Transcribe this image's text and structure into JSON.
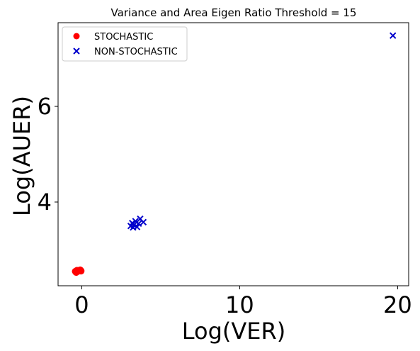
{
  "chart_data": {
    "type": "scatter",
    "title": "Variance and  Area Eigen Ratio Threshold = 15",
    "xlabel": "Log(VER)",
    "ylabel": "Log(AUER)",
    "xlim": [
      -1.5,
      20.7
    ],
    "ylim": [
      2.25,
      7.75
    ],
    "xticks": [
      0,
      10,
      20
    ],
    "yticks": [
      4,
      6
    ],
    "xtick_labels": [
      "0",
      "10",
      "20"
    ],
    "ytick_labels": [
      "4",
      "6"
    ],
    "grid": false,
    "legend_position": "top-left",
    "series": [
      {
        "name": "STOCHASTIC",
        "marker": "circle",
        "color": "#ff0000",
        "points": [
          {
            "x": -0.4,
            "y": 2.55
          },
          {
            "x": -0.3,
            "y": 2.57
          },
          {
            "x": -0.2,
            "y": 2.56
          },
          {
            "x": -0.1,
            "y": 2.58
          },
          {
            "x": -0.35,
            "y": 2.53
          },
          {
            "x": -0.05,
            "y": 2.56
          }
        ]
      },
      {
        "name": "NON-STOCHASTIC",
        "marker": "x",
        "color": "#0000cc",
        "points": [
          {
            "x": 3.1,
            "y": 3.5
          },
          {
            "x": 3.2,
            "y": 3.56
          },
          {
            "x": 3.3,
            "y": 3.52
          },
          {
            "x": 3.4,
            "y": 3.6
          },
          {
            "x": 3.5,
            "y": 3.48
          },
          {
            "x": 3.6,
            "y": 3.55
          },
          {
            "x": 3.7,
            "y": 3.65
          },
          {
            "x": 3.9,
            "y": 3.58
          },
          {
            "x": 3.25,
            "y": 3.47
          },
          {
            "x": 19.7,
            "y": 7.48
          }
        ]
      }
    ]
  }
}
